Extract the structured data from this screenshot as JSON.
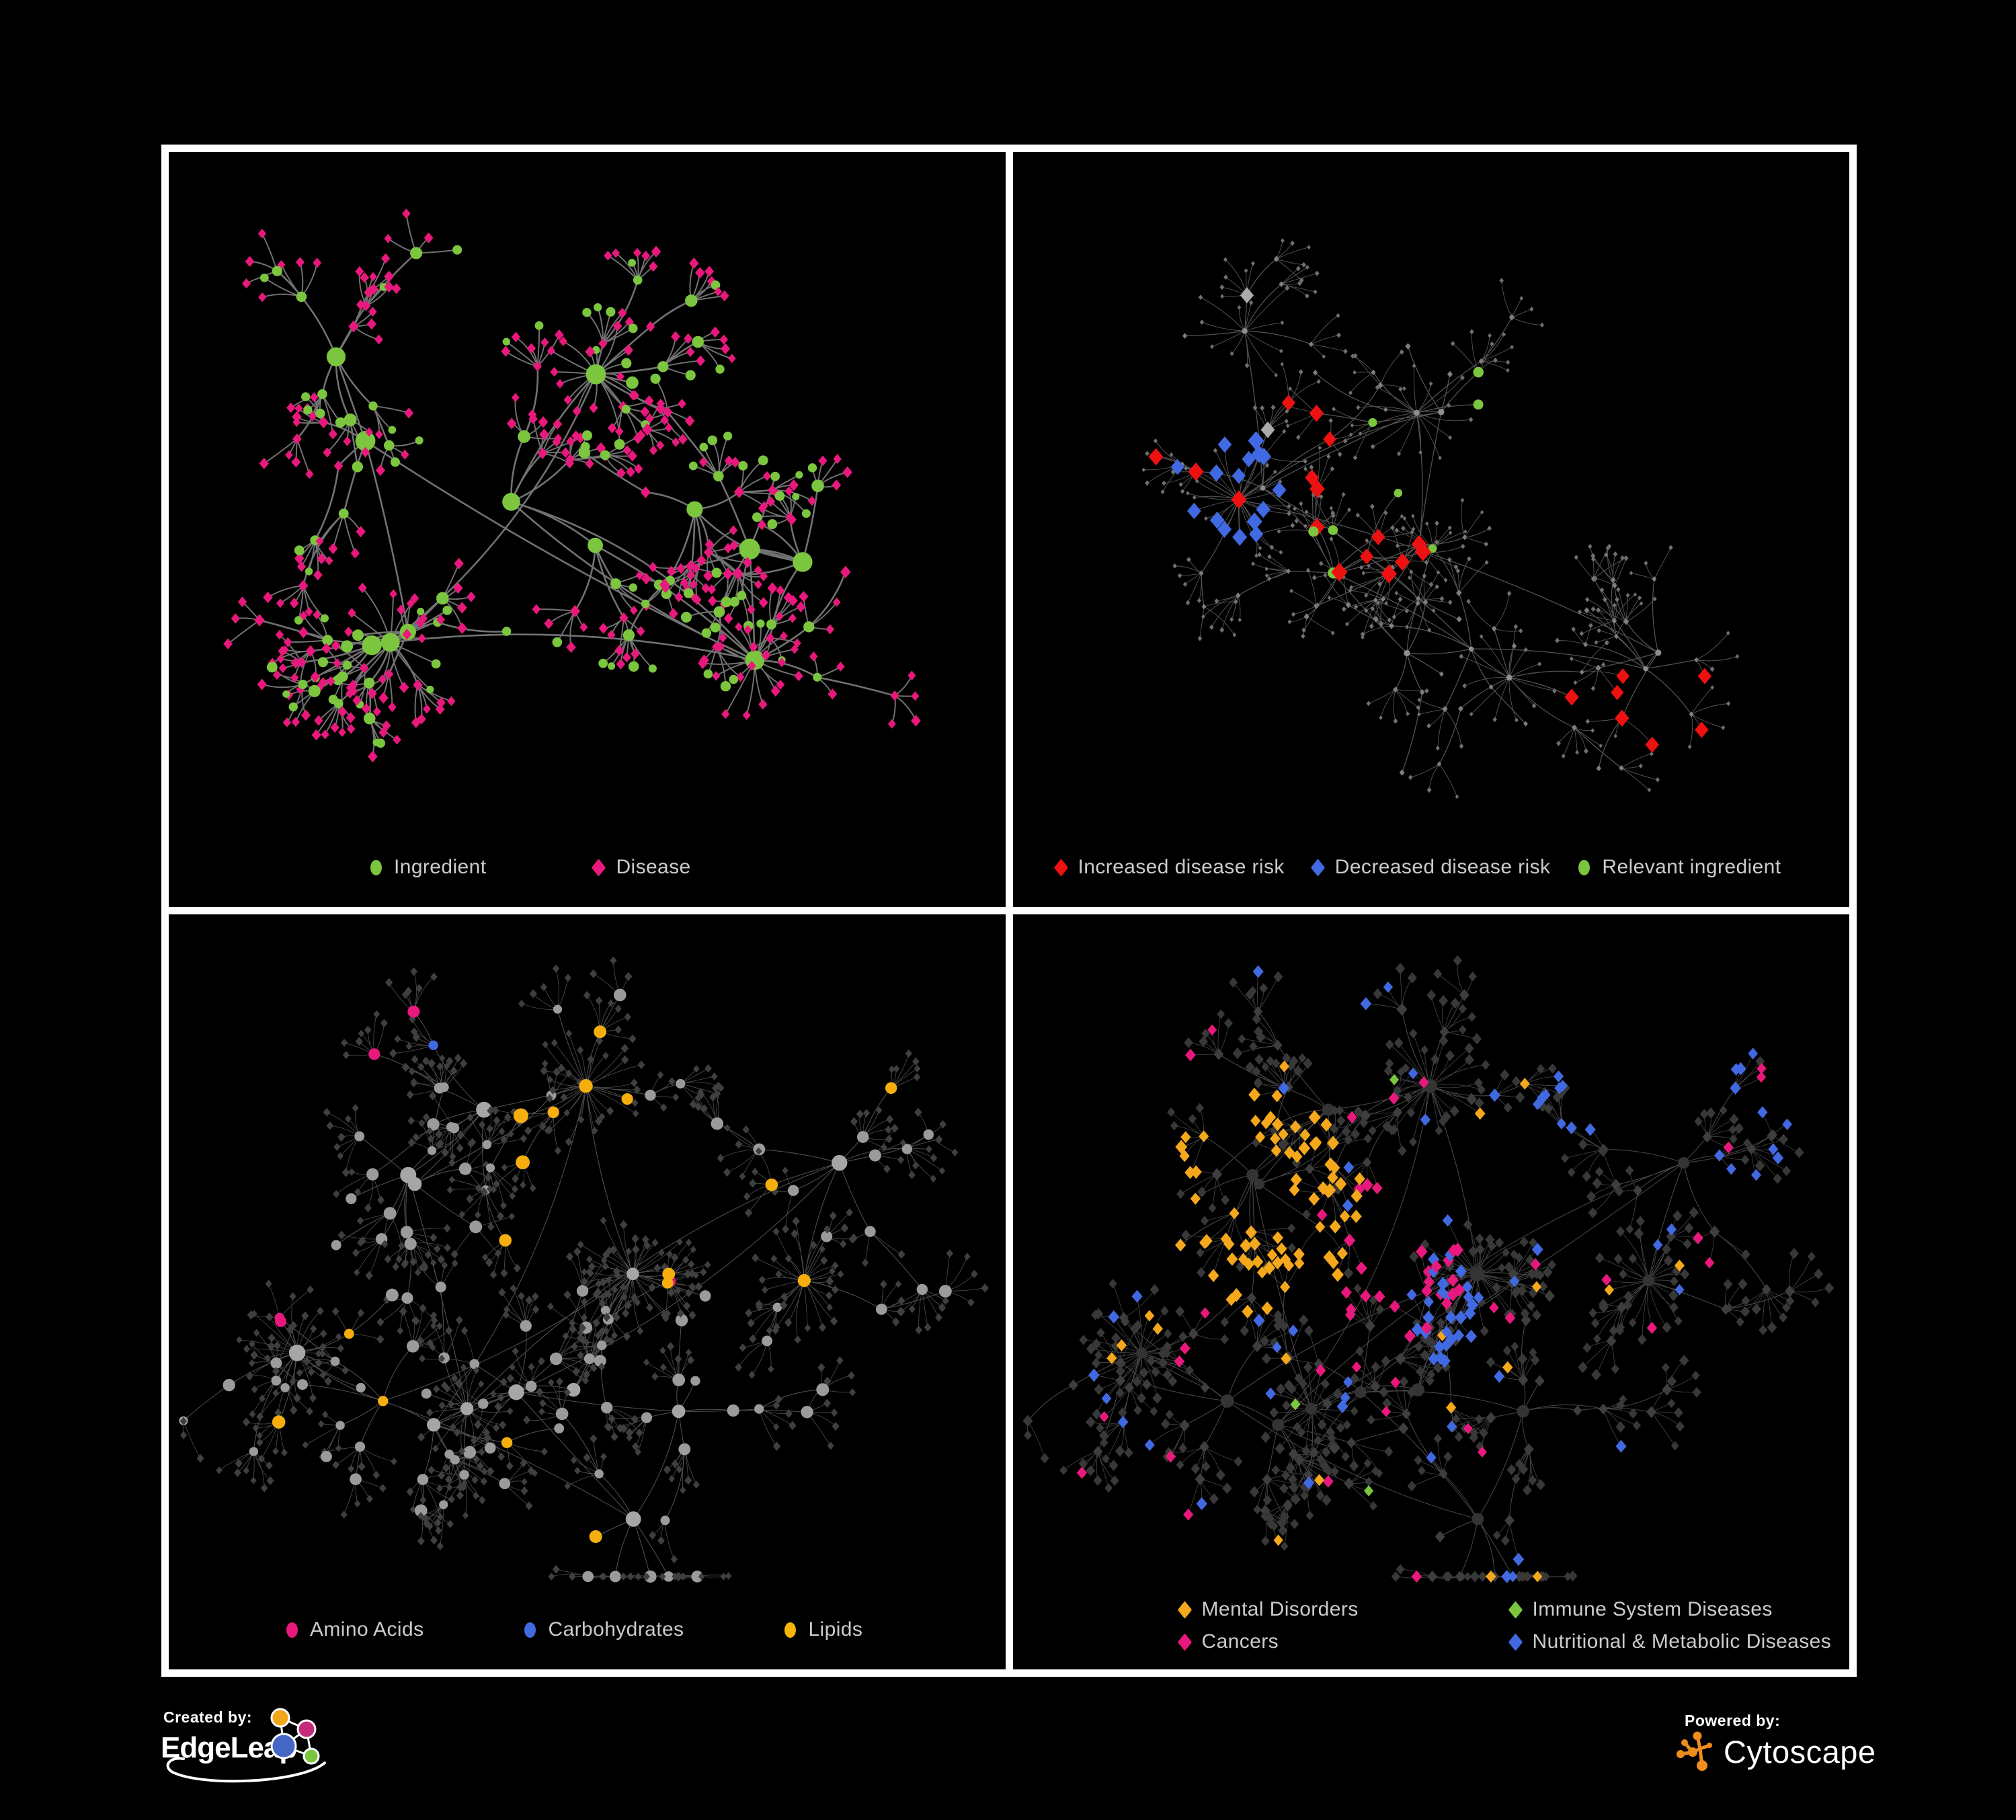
{
  "page": {
    "background": "#000000",
    "frame_color": "#FFFFFF"
  },
  "panels": [
    {
      "legend": [
        {
          "label": "Ingredient",
          "shape": "circle",
          "color": "#7CC63F"
        },
        {
          "label": "Disease",
          "shape": "diamond",
          "color": "#E7197C"
        }
      ],
      "network": {
        "seed": 101,
        "styleSeed": 5,
        "clusters": 12,
        "extraLinks": 5,
        "branchMin": 3,
        "branchMax": 6,
        "chainMax": 2,
        "fanProb": 0.8,
        "fanMin": 3,
        "fanMax": 7,
        "bursts": 3,
        "burstMin": 12,
        "burstMax": 20,
        "spreadX": 0.36,
        "spreadY": 0.35,
        "centerY": 0.45,
        "edge": {
          "color": "#7C7C7C",
          "width": 2.6,
          "opacity": 0.92,
          "curve": 0.16
        },
        "base": {
          "hub": {
            "shape": "circle",
            "color": "#7CC63F",
            "size": 11,
            "sizeVar": 5
          },
          "mid": {
            "shape": "circle",
            "color": "#7CC63F",
            "size": 6.5,
            "sizeVar": 3,
            "altProb": 0.45,
            "alt": {
              "shape": "diamond",
              "color": "#E7197C",
              "size": 6.5,
              "sizeVar": 1.5
            }
          },
          "leaf": {
            "shape": "diamond",
            "color": "#E7197C",
            "size": 5.8,
            "sizeVar": 1.6,
            "altProb": 0.2,
            "alt": {
              "shape": "circle",
              "color": "#7CC63F",
              "size": 5.5,
              "sizeVar": 2.5
            }
          }
        },
        "highlights": []
      }
    },
    {
      "legend": [
        {
          "label": "Increased disease risk",
          "shape": "diamond",
          "color": "#EE1111"
        },
        {
          "label": "Decreased disease risk",
          "shape": "diamond",
          "color": "#4169E1"
        },
        {
          "label": "Relevant ingredient",
          "shape": "circle",
          "color": "#7CC63F"
        }
      ],
      "network": {
        "seed": 202,
        "styleSeed": 9,
        "clusters": 13,
        "extraLinks": 6,
        "branchMin": 3,
        "branchMax": 6,
        "chainMax": 2,
        "fanProb": 0.72,
        "fanMin": 3,
        "fanMax": 6,
        "bursts": 5,
        "burstMin": 10,
        "burstMax": 18,
        "spreadX": 0.38,
        "spreadY": 0.36,
        "centerY": 0.43,
        "edge": {
          "color": "#5E5E5E",
          "width": 1.25,
          "opacity": 0.9,
          "curve": 0.14
        },
        "base": {
          "hub": {
            "shape": "circle",
            "color": "#8E8E8E",
            "size": 3.6,
            "sizeVar": 1.2
          },
          "mid": {
            "shape": "diamond",
            "color": "#7F7F7F",
            "size": 3.2,
            "sizeVar": 1
          },
          "leaf": {
            "shape": "diamond",
            "color": "#707070",
            "size": 2.7,
            "sizeVar": 0.8
          }
        },
        "highlights": [
          {
            "zone": [
              0.89,
              0.36,
              0.04
            ],
            "prob": 0.85,
            "roles": [
              "mid",
              "leaf",
              "hub"
            ],
            "shape": "diamond",
            "color": "#4169E1",
            "size": 9,
            "sizeVar": 1
          },
          {
            "zone": [
              0.78,
              0.74,
              0.07
            ],
            "prob": 0.5,
            "roles": [
              "mid",
              "leaf"
            ],
            "shape": "diamond",
            "color": "#EE1111",
            "size": 9.5,
            "sizeVar": 1.5
          },
          {
            "zone": [
              0.25,
              0.45,
              0.075
            ],
            "prob": 0.45,
            "roles": [
              "mid",
              "hub",
              "leaf"
            ],
            "shape": "diamond",
            "color": "#4169E1",
            "size": 10,
            "sizeVar": 2
          },
          {
            "zone": [
              0.23,
              0.4,
              0.07
            ],
            "prob": 0.3,
            "roles": [
              "mid",
              "hub"
            ],
            "shape": "diamond",
            "color": "#EE1111",
            "size": 10,
            "sizeVar": 2
          },
          {
            "zone": [
              0.4,
              0.46,
              0.11
            ],
            "prob": 0.45,
            "roles": [
              "mid",
              "hub"
            ],
            "shape": "diamond",
            "color": "#EE1111",
            "size": 10,
            "sizeVar": 2
          },
          {
            "zone": [
              0.41,
              0.47,
              0.13
            ],
            "prob": 0.4,
            "roles": [
              "mid",
              "hub"
            ],
            "shape": "circle",
            "color": "#7CC63F",
            "size": 6,
            "sizeVar": 2.5
          },
          {
            "zone": [
              0.5,
              0.44,
              0.5
            ],
            "prob": 0.04,
            "roles": [
              "mid"
            ],
            "shape": "diamond",
            "color": "#EE1111",
            "size": 9.5,
            "sizeVar": 2
          },
          {
            "zone": [
              0.5,
              0.44,
              0.5
            ],
            "prob": 0.04,
            "roles": [
              "mid",
              "hub"
            ],
            "shape": "circle",
            "color": "#7CC63F",
            "size": 6,
            "sizeVar": 2
          },
          {
            "zone": [
              0.5,
              0.42,
              0.5
            ],
            "prob": 0.03,
            "roles": [
              "mid"
            ],
            "shape": "diamond",
            "color": "#ABABAB",
            "size": 10,
            "sizeVar": 1
          }
        ]
      }
    },
    {
      "legend": [
        {
          "label": "Amino Acids",
          "shape": "circle",
          "color": "#E7197C"
        },
        {
          "label": "Carbohydrates",
          "shape": "circle",
          "color": "#4169E1"
        },
        {
          "label": "Lipids",
          "shape": "circle",
          "color": "#F7B40A"
        }
      ],
      "network": {
        "seed": 303,
        "styleSeed": 17,
        "clusters": 15,
        "extraLinks": 7,
        "branchMin": 3,
        "branchMax": 7,
        "chainMax": 2,
        "fanProb": 0.8,
        "fanMin": 3,
        "fanMax": 8,
        "bursts": 6,
        "burstMin": 16,
        "burstMax": 30,
        "spreadX": 0.38,
        "spreadY": 0.36,
        "centerY": 0.46,
        "edge": {
          "color": "#A0A0A0",
          "width": 1.05,
          "opacity": 0.5,
          "curve": 0.14
        },
        "base": {
          "hub": {
            "shape": "circle",
            "color": "#A6A6A6",
            "size": 9,
            "sizeVar": 4
          },
          "mid": {
            "shape": "circle",
            "color": "#9B9B9B",
            "size": 6.5,
            "sizeVar": 3
          },
          "leaf": {
            "shape": "diamond",
            "color": "#3F3F3F",
            "size": 4.6,
            "sizeVar": 1.2
          }
        },
        "highlights": [
          {
            "zone": [
              0.5,
              0.22,
              0.09
            ],
            "prob": 0.6,
            "roles": [
              "mid",
              "hub"
            ],
            "shape": "circle",
            "color": "#F5AE0D",
            "size": 8,
            "sizeVar": 3
          },
          {
            "zone": [
              0.47,
              0.28,
              0.05
            ],
            "prob": 0.5,
            "roles": [
              "mid"
            ],
            "shape": "circle",
            "color": "#4169E1",
            "size": 7,
            "sizeVar": 2
          },
          {
            "zone": [
              0.45,
              0.38,
              0.07
            ],
            "prob": 0.5,
            "roles": [
              "mid",
              "hub"
            ],
            "shape": "circle",
            "color": "#F5AE0D",
            "size": 8,
            "sizeVar": 3
          },
          {
            "zone": [
              0.5,
              0.7,
              0.05
            ],
            "prob": 0.5,
            "roles": [
              "mid",
              "hub"
            ],
            "shape": "circle",
            "color": "#F5AE0D",
            "size": 8,
            "sizeVar": 2
          },
          {
            "zone": [
              0.5,
              0.5,
              0.55
            ],
            "prob": 0.08,
            "roles": [
              "mid",
              "hub"
            ],
            "shape": "circle",
            "color": "#F5AE0D",
            "size": 7,
            "sizeVar": 3
          },
          {
            "zone": [
              0.5,
              0.5,
              0.55
            ],
            "prob": 0.05,
            "roles": [
              "mid",
              "hub"
            ],
            "shape": "circle",
            "color": "#E7197C",
            "size": 7,
            "sizeVar": 2
          },
          {
            "zone": [
              0.5,
              0.5,
              0.55
            ],
            "prob": 0.013,
            "roles": [
              "mid"
            ],
            "shape": "circle",
            "color": "#4169E1",
            "size": 6.5,
            "sizeVar": 1.5
          }
        ]
      }
    },
    {
      "legend": [
        {
          "label": "Mental Disorders",
          "shape": "diamond",
          "color": "#F5A81C"
        },
        {
          "label": "Immune System Diseases",
          "shape": "diamond",
          "color": "#7CC63F"
        },
        {
          "label": "Cancers",
          "shape": "diamond",
          "color": "#E7197C"
        },
        {
          "label": "Nutritional & Metabolic Diseases",
          "shape": "diamond",
          "color": "#4169E1"
        }
      ],
      "network": {
        "seed": 303,
        "styleSeed": 29,
        "clusters": 15,
        "extraLinks": 7,
        "branchMin": 3,
        "branchMax": 7,
        "chainMax": 2,
        "fanProb": 0.8,
        "fanMin": 3,
        "fanMax": 8,
        "bursts": 6,
        "burstMin": 16,
        "burstMax": 30,
        "spreadX": 0.38,
        "spreadY": 0.36,
        "centerY": 0.46,
        "edge": {
          "color": "#5A5A5A",
          "width": 1.05,
          "opacity": 0.8,
          "curve": 0.14
        },
        "base": {
          "hub": {
            "shape": "circle",
            "color": "#343434",
            "size": 8,
            "sizeVar": 3
          },
          "mid": {
            "shape": "diamond",
            "color": "#3E3E3E",
            "size": 6.5,
            "sizeVar": 1.5
          },
          "leaf": {
            "shape": "diamond",
            "color": "#383838",
            "size": 5.8,
            "sizeVar": 1.5
          }
        },
        "highlights": [
          {
            "zone": [
              0.92,
              0.23,
              0.04
            ],
            "prob": 0.6,
            "roles": [
              "mid",
              "leaf"
            ],
            "shape": "diamond",
            "color": "#E7197C",
            "size": 7,
            "sizeVar": 1
          },
          {
            "zone": [
              0.28,
              0.38,
              0.14
            ],
            "prob": 0.7,
            "roles": [
              "mid",
              "leaf"
            ],
            "shape": "diamond",
            "color": "#F5A81C",
            "size": 7.5,
            "sizeVar": 1.5
          },
          {
            "zone": [
              0.44,
              0.46,
              0.1
            ],
            "prob": 0.5,
            "roles": [
              "mid",
              "leaf"
            ],
            "shape": "diamond",
            "color": "#E7197C",
            "size": 7.5,
            "sizeVar": 1.5
          },
          {
            "zone": [
              0.52,
              0.52,
              0.07
            ],
            "prob": 0.55,
            "roles": [
              "mid",
              "leaf"
            ],
            "shape": "diamond",
            "color": "#4169E1",
            "size": 7.5,
            "sizeVar": 1.5
          },
          {
            "zone": [
              0.66,
              0.2,
              0.1
            ],
            "prob": 0.35,
            "roles": [
              "mid",
              "leaf"
            ],
            "shape": "diamond",
            "color": "#4169E1",
            "size": 7,
            "sizeVar": 1.5
          },
          {
            "zone": [
              0.9,
              0.22,
              0.06
            ],
            "prob": 0.4,
            "roles": [
              "mid",
              "leaf"
            ],
            "shape": "diamond",
            "color": "#4169E1",
            "size": 7,
            "sizeVar": 1.5
          },
          {
            "zone": [
              0.5,
              0.5,
              0.6
            ],
            "prob": 0.06,
            "roles": [
              "mid",
              "leaf"
            ],
            "shape": "diamond",
            "color": "#4169E1",
            "size": 7,
            "sizeVar": 1.5
          },
          {
            "zone": [
              0.5,
              0.5,
              0.6
            ],
            "prob": 0.04,
            "roles": [
              "mid",
              "leaf"
            ],
            "shape": "diamond",
            "color": "#E7197C",
            "size": 7,
            "sizeVar": 1
          },
          {
            "zone": [
              0.5,
              0.5,
              0.6
            ],
            "prob": 0.04,
            "roles": [
              "mid",
              "leaf"
            ],
            "shape": "diamond",
            "color": "#F5A81C",
            "size": 7,
            "sizeVar": 1
          },
          {
            "zone": [
              0.5,
              0.5,
              0.6
            ],
            "prob": 0.013,
            "roles": [
              "mid",
              "leaf"
            ],
            "shape": "diamond",
            "color": "#7CC63F",
            "size": 7,
            "sizeVar": 1
          }
        ]
      }
    }
  ],
  "footer": {
    "created_by_label": "Created by:",
    "created_by_brand": "EdgeLeap",
    "powered_by_label": "Powered by:",
    "powered_by_brand": "Cytoscape",
    "edgeleap_logo_colors": [
      "#F2A71B",
      "#C42B7D",
      "#4467C6",
      "#7CC63F"
    ],
    "cytoscape_logo_color": "#EE8C1E"
  }
}
